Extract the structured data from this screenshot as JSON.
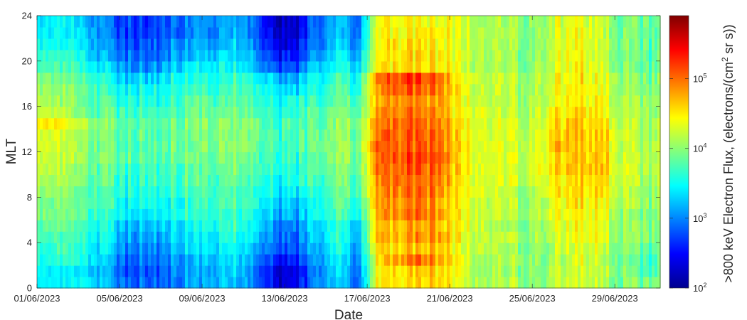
{
  "chart_data": {
    "type": "heatmap",
    "title": "",
    "xlabel": "Date",
    "ylabel": "MLT",
    "colorbar_label_parts": [
      ">800 keV Electron Flux, (electrons/(cm",
      "2",
      " sr s))"
    ],
    "x_tick_labels": [
      "01/06/2023",
      "05/06/2023",
      "09/06/2023",
      "13/06/2023",
      "17/06/2023",
      "21/06/2023",
      "25/06/2023",
      "29/06/2023"
    ],
    "x_tick_days": [
      1,
      5,
      9,
      13,
      17,
      21,
      25,
      29
    ],
    "xlim_days": [
      1,
      31.2
    ],
    "y_tick_labels": [
      "0",
      "4",
      "8",
      "12",
      "16",
      "20",
      "24"
    ],
    "y_ticks": [
      0,
      4,
      8,
      12,
      16,
      20,
      24
    ],
    "ylim": [
      0,
      24
    ],
    "colorbar": {
      "scale": "log",
      "range": [
        100,
        800000
      ],
      "ticks": [
        100,
        1000,
        10000,
        100000
      ],
      "tick_base": "10",
      "tick_exponents": [
        "2",
        "3",
        "4",
        "5"
      ],
      "colormap": "jet"
    },
    "mlt_bins": 24,
    "day_columns": 30,
    "log10_flux_by_mlt_bin": [
      [
        3.4,
        3.3,
        3.5,
        3.1,
        2.9,
        2.8,
        3.0,
        3.1,
        3.2,
        3.3,
        3.0,
        2.4,
        2.3,
        3.0,
        3.3,
        2.8,
        4.4,
        4.5,
        4.6,
        4.6,
        4.3,
        4.1,
        4.1,
        4.1,
        4.0,
        4.2,
        4.3,
        4.1,
        3.9,
        3.9
      ],
      [
        3.4,
        3.3,
        3.4,
        3.1,
        2.8,
        2.8,
        3.0,
        3.1,
        3.2,
        3.3,
        3.0,
        2.4,
        2.3,
        3.0,
        3.3,
        2.9,
        4.4,
        4.5,
        4.6,
        4.6,
        4.3,
        4.1,
        4.1,
        4.0,
        4.0,
        4.2,
        4.3,
        4.1,
        3.9,
        3.7
      ],
      [
        3.5,
        3.5,
        3.5,
        3.2,
        2.9,
        2.9,
        3.1,
        3.2,
        3.3,
        3.4,
        3.1,
        2.6,
        2.5,
        3.1,
        3.4,
        3.0,
        4.4,
        4.8,
        5.0,
        4.8,
        4.4,
        4.1,
        4.1,
        4.1,
        4.0,
        4.2,
        4.3,
        4.1,
        3.9,
        3.7
      ],
      [
        3.6,
        3.6,
        3.5,
        3.3,
        3.0,
        3.0,
        3.2,
        3.3,
        3.4,
        3.5,
        3.2,
        2.8,
        2.7,
        3.2,
        3.5,
        3.1,
        4.5,
        4.6,
        4.7,
        4.6,
        4.3,
        4.2,
        4.1,
        4.0,
        4.0,
        4.2,
        4.3,
        4.2,
        3.9,
        3.8
      ],
      [
        3.7,
        3.6,
        3.6,
        3.4,
        3.1,
        3.1,
        3.3,
        3.4,
        3.5,
        3.6,
        3.3,
        2.9,
        2.8,
        3.3,
        3.6,
        3.2,
        4.6,
        4.7,
        4.9,
        4.8,
        4.4,
        4.2,
        4.2,
        4.1,
        4.1,
        4.3,
        4.4,
        4.3,
        4.0,
        3.9
      ],
      [
        3.8,
        3.7,
        3.6,
        3.5,
        3.2,
        3.2,
        3.4,
        3.5,
        3.6,
        3.7,
        3.4,
        3.0,
        2.9,
        3.4,
        3.6,
        3.3,
        4.6,
        4.7,
        4.8,
        4.7,
        4.4,
        4.2,
        4.1,
        4.0,
        4.1,
        4.3,
        4.4,
        4.3,
        4.0,
        3.9
      ],
      [
        3.9,
        3.8,
        3.7,
        3.6,
        3.4,
        3.4,
        3.5,
        3.6,
        3.7,
        3.7,
        3.5,
        3.2,
        3.1,
        3.5,
        3.7,
        3.5,
        4.7,
        4.9,
        5.0,
        4.8,
        4.4,
        4.2,
        4.2,
        4.1,
        4.2,
        4.4,
        4.5,
        4.4,
        4.0,
        3.9
      ],
      [
        3.9,
        3.8,
        3.8,
        3.7,
        3.5,
        3.5,
        3.6,
        3.6,
        3.7,
        3.8,
        3.6,
        3.3,
        3.2,
        3.5,
        3.8,
        3.6,
        4.7,
        4.8,
        4.9,
        4.8,
        4.4,
        4.2,
        4.2,
        4.1,
        4.2,
        4.4,
        4.5,
        4.4,
        4.1,
        4.0
      ],
      [
        4.0,
        3.9,
        3.8,
        3.7,
        3.6,
        3.6,
        3.7,
        3.7,
        3.8,
        3.8,
        3.6,
        3.4,
        3.4,
        3.6,
        3.8,
        3.7,
        4.8,
        4.9,
        5.0,
        4.9,
        4.4,
        4.3,
        4.2,
        4.1,
        4.3,
        4.5,
        4.6,
        4.5,
        4.1,
        4.0
      ],
      [
        4.1,
        4.0,
        3.9,
        3.8,
        3.6,
        3.7,
        3.7,
        3.8,
        3.8,
        3.9,
        3.7,
        3.5,
        3.5,
        3.7,
        3.9,
        3.8,
        4.8,
        5.0,
        5.0,
        4.9,
        4.5,
        4.3,
        4.3,
        4.2,
        4.3,
        4.5,
        4.6,
        4.5,
        4.2,
        4.1
      ],
      [
        4.2,
        4.0,
        3.9,
        3.8,
        3.7,
        3.7,
        3.8,
        3.8,
        3.9,
        3.9,
        3.8,
        3.6,
        3.6,
        3.8,
        3.9,
        3.8,
        4.9,
        5.0,
        5.1,
        5.0,
        4.5,
        4.3,
        4.3,
        4.2,
        4.4,
        4.6,
        4.7,
        4.6,
        4.2,
        4.1
      ],
      [
        4.2,
        4.1,
        4.0,
        3.9,
        3.8,
        3.8,
        3.8,
        3.9,
        3.9,
        4.0,
        3.8,
        3.6,
        3.6,
        3.8,
        4.0,
        3.9,
        4.9,
        5.1,
        5.2,
        5.1,
        4.5,
        4.3,
        4.3,
        4.2,
        4.4,
        4.6,
        4.7,
        4.6,
        4.2,
        4.1
      ],
      [
        4.3,
        4.1,
        4.0,
        3.9,
        3.8,
        3.8,
        3.9,
        3.9,
        4.0,
        4.0,
        3.9,
        3.7,
        3.7,
        3.9,
        4.0,
        3.9,
        5.0,
        5.0,
        5.1,
        5.0,
        4.5,
        4.3,
        4.3,
        4.2,
        4.4,
        4.7,
        4.7,
        4.6,
        4.2,
        4.1
      ],
      [
        4.3,
        4.1,
        4.0,
        3.9,
        3.8,
        3.8,
        3.9,
        3.9,
        4.0,
        4.0,
        3.9,
        3.7,
        3.7,
        3.9,
        4.0,
        3.9,
        4.9,
        5.0,
        5.1,
        5.0,
        4.5,
        4.3,
        4.3,
        4.2,
        4.4,
        4.6,
        4.7,
        4.6,
        4.2,
        4.1
      ],
      [
        4.5,
        4.3,
        4.1,
        3.9,
        3.8,
        3.8,
        3.9,
        3.9,
        4.0,
        4.0,
        3.9,
        3.7,
        3.7,
        3.8,
        4.0,
        3.9,
        4.8,
        5.0,
        5.0,
        4.9,
        4.5,
        4.3,
        4.3,
        4.2,
        4.3,
        4.6,
        4.6,
        4.5,
        4.2,
        4.1
      ],
      [
        4.2,
        4.0,
        3.9,
        3.8,
        3.7,
        3.7,
        3.8,
        3.9,
        3.9,
        3.9,
        3.8,
        3.6,
        3.6,
        3.8,
        3.9,
        3.8,
        4.7,
        4.9,
        5.0,
        4.8,
        4.4,
        4.3,
        4.2,
        4.1,
        4.3,
        4.5,
        4.6,
        4.4,
        4.1,
        4.0
      ],
      [
        4.1,
        3.9,
        3.8,
        3.7,
        3.6,
        3.6,
        3.7,
        3.8,
        3.8,
        3.8,
        3.7,
        3.5,
        3.5,
        3.7,
        3.8,
        3.7,
        4.7,
        4.8,
        4.9,
        4.8,
        4.4,
        4.2,
        4.2,
        4.1,
        4.2,
        4.4,
        4.5,
        4.4,
        4.1,
        4.0
      ],
      [
        4.0,
        3.9,
        3.8,
        3.6,
        3.5,
        3.5,
        3.6,
        3.7,
        3.7,
        3.8,
        3.6,
        3.4,
        3.3,
        3.6,
        3.8,
        3.6,
        4.8,
        5.0,
        5.1,
        4.9,
        4.4,
        4.2,
        4.2,
        4.1,
        4.2,
        4.4,
        4.5,
        4.3,
        4.0,
        3.9
      ],
      [
        3.9,
        3.8,
        3.7,
        3.5,
        3.3,
        3.3,
        3.5,
        3.6,
        3.6,
        3.7,
        3.5,
        3.2,
        3.1,
        3.5,
        3.7,
        3.5,
        4.9,
        5.1,
        5.2,
        5.0,
        4.4,
        4.2,
        4.2,
        4.1,
        4.2,
        4.4,
        4.5,
        4.3,
        4.0,
        3.9
      ],
      [
        3.7,
        3.6,
        3.5,
        3.3,
        3.0,
        3.0,
        3.3,
        3.4,
        3.5,
        3.5,
        3.2,
        2.8,
        2.7,
        3.3,
        3.5,
        3.3,
        4.4,
        4.5,
        4.6,
        4.5,
        4.3,
        4.1,
        4.1,
        4.0,
        4.1,
        4.3,
        4.4,
        4.2,
        3.9,
        3.8
      ],
      [
        3.6,
        3.5,
        3.4,
        3.1,
        2.9,
        2.9,
        3.1,
        3.2,
        3.3,
        3.4,
        3.1,
        2.6,
        2.5,
        3.1,
        3.4,
        3.1,
        4.4,
        4.5,
        4.6,
        4.5,
        4.3,
        4.1,
        4.1,
        4.0,
        4.1,
        4.3,
        4.4,
        4.2,
        3.9,
        3.8
      ],
      [
        3.5,
        3.4,
        3.3,
        3.0,
        2.8,
        2.8,
        3.0,
        3.1,
        3.2,
        3.3,
        3.0,
        2.4,
        2.3,
        3.0,
        3.3,
        3.0,
        4.4,
        4.5,
        4.5,
        4.5,
        4.3,
        4.1,
        4.1,
        4.0,
        4.1,
        4.3,
        4.4,
        4.2,
        3.9,
        3.8
      ],
      [
        3.4,
        3.3,
        3.3,
        2.9,
        2.7,
        2.7,
        2.9,
        3.0,
        3.1,
        3.2,
        2.9,
        2.3,
        2.2,
        2.9,
        3.2,
        2.9,
        4.4,
        4.4,
        4.5,
        4.5,
        4.3,
        4.1,
        4.1,
        4.0,
        4.1,
        4.3,
        4.4,
        4.2,
        3.9,
        3.8
      ],
      [
        3.4,
        3.3,
        3.2,
        2.9,
        2.7,
        2.7,
        2.9,
        3.0,
        3.1,
        3.2,
        2.9,
        2.3,
        2.2,
        2.9,
        3.2,
        2.9,
        4.3,
        4.4,
        4.5,
        4.4,
        4.3,
        4.1,
        4.1,
        4.0,
        4.1,
        4.3,
        4.4,
        4.2,
        3.9,
        3.8
      ]
    ]
  }
}
